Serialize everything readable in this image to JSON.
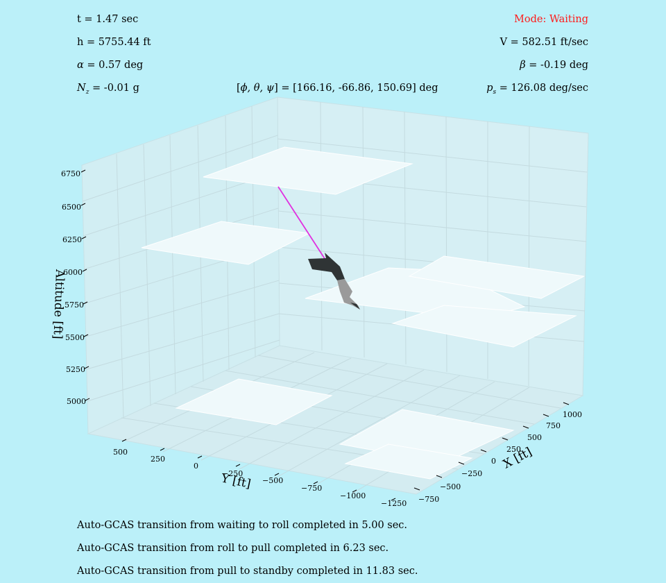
{
  "status": {
    "time": "t = 1.47 sec",
    "altitude": "h = 5755.44 ft",
    "alpha_value": " = 0.57 deg",
    "nz_value": " = -0.01 g",
    "euler_value": "] = [166.16, -66.86, 150.69] deg",
    "mode": "Mode: Waiting",
    "velocity": "V = 582.51 ft/sec",
    "beta_value": " = -0.19 deg",
    "ps_value": " = 126.08 deg/sec"
  },
  "colors": {
    "background": "#bbf0f9",
    "mode_text": "#ff1a1a",
    "trajectory": "#e030e0",
    "aircraft_dark": "#2f3435",
    "aircraft_light": "#9a9a9a"
  },
  "plot": {
    "z_label": "Altitude [ft]",
    "y_label": "Y [ft]",
    "x_label": "X [ft]",
    "z_ticks": [
      "6750",
      "6500",
      "6250",
      "6000",
      "5750",
      "5500",
      "5250",
      "5000"
    ],
    "y_ticks": [
      "500",
      "250",
      "0",
      "−250",
      "−500",
      "−750",
      "−1000",
      "−1250"
    ],
    "x_ticks": [
      "1000",
      "750",
      "500",
      "250",
      "0",
      "−250",
      "−500",
      "−750"
    ]
  },
  "log": [
    "Auto-GCAS transition from waiting to roll completed in 5.00 sec.",
    "Auto-GCAS transition from roll to pull completed in 6.23 sec.",
    "Auto-GCAS transition from pull to standby completed in 11.83 sec."
  ]
}
